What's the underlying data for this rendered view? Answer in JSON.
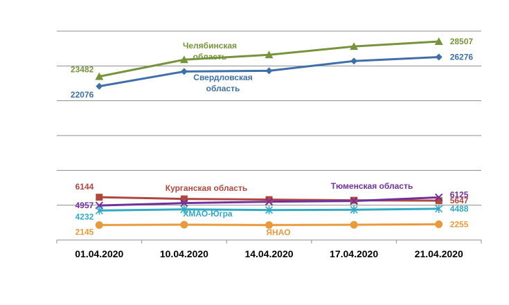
{
  "chart_data": {
    "type": "line",
    "title": "",
    "xlabel": "",
    "ylabel": "",
    "categories": [
      "01.04.2020",
      "10.04.2020",
      "14.04.2020",
      "17.04.2020",
      "21.04.2020"
    ],
    "ylim": [
      0,
      30000
    ],
    "grid": true,
    "legend": "none",
    "series": [
      {
        "name": "Челябинская область",
        "color": "#77933C",
        "marker": "triangle",
        "values": [
          23482,
          25900,
          26600,
          27800,
          28507
        ],
        "first_label": "23482",
        "last_label": "28507"
      },
      {
        "name": "Свердловская область",
        "color": "#3F6FA8",
        "marker": "diamond",
        "values": [
          22076,
          24200,
          24300,
          25700,
          26276
        ],
        "first_label": "22076",
        "last_label": "26276"
      },
      {
        "name": "Курганская область",
        "color": "#B0473E",
        "marker": "square",
        "values": [
          6144,
          5900,
          5800,
          5700,
          5647
        ],
        "first_label": "6144",
        "last_label": "5647"
      },
      {
        "name": "Тюменская область",
        "color": "#7030A0",
        "marker": "x",
        "values": [
          4957,
          5300,
          5500,
          5600,
          6125
        ],
        "first_label": "4957",
        "last_label": "6125"
      },
      {
        "name": "ХМАО-Югра",
        "color": "#31A9C4",
        "marker": "star",
        "values": [
          4232,
          4400,
          4300,
          4350,
          4488
        ],
        "first_label": "4232",
        "last_label": "4488"
      },
      {
        "name": "ЯНАО",
        "color": "#E89A3C",
        "marker": "circle",
        "values": [
          2145,
          2200,
          2150,
          2180,
          2255
        ],
        "first_label": "2145",
        "last_label": "2255"
      }
    ],
    "annotations": [
      {
        "series": 0,
        "lines": [
          "Челябинская",
          "область"
        ]
      },
      {
        "series": 1,
        "lines": [
          "Свердловская",
          "область"
        ]
      },
      {
        "series": 2,
        "lines": [
          "Курганская область"
        ]
      },
      {
        "series": 3,
        "lines": [
          "Тюменская область"
        ]
      },
      {
        "series": 4,
        "lines": [
          "ХМАО-Югра"
        ]
      },
      {
        "series": 5,
        "lines": [
          "ЯНАО"
        ]
      }
    ]
  }
}
